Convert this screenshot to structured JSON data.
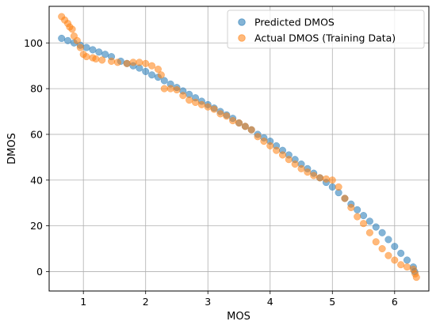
{
  "chart_data": {
    "type": "scatter",
    "xlabel": "MOS",
    "ylabel": "DMOS",
    "xlim": [
      0.45,
      6.55
    ],
    "ylim": [
      -8.5,
      116
    ],
    "xticks": [
      1,
      2,
      3,
      4,
      5,
      6
    ],
    "yticks": [
      0,
      20,
      40,
      60,
      80,
      100
    ],
    "grid": true,
    "legend_position": "top-right",
    "series": [
      {
        "name": "Predicted DMOS",
        "color": "#1f77b4",
        "x": [
          0.65,
          0.75,
          0.85,
          0.95,
          1.05,
          1.15,
          1.25,
          1.35,
          1.45,
          1.6,
          1.7,
          1.8,
          1.9,
          2.0,
          2.1,
          2.2,
          2.3,
          2.4,
          2.5,
          2.6,
          2.7,
          2.8,
          2.9,
          3.0,
          3.1,
          3.2,
          3.3,
          3.4,
          3.5,
          3.6,
          3.7,
          3.8,
          3.9,
          4.0,
          4.1,
          4.2,
          4.3,
          4.4,
          4.5,
          4.6,
          4.7,
          4.8,
          4.9,
          5.0,
          5.1,
          5.2,
          5.3,
          5.4,
          5.5,
          5.6,
          5.7,
          5.8,
          5.9,
          6.0,
          6.1,
          6.2,
          6.3,
          6.32
        ],
        "y": [
          102,
          101,
          100,
          99,
          98,
          97,
          96,
          95,
          94,
          92,
          91,
          90,
          89,
          87.5,
          86,
          85,
          83.5,
          82,
          80.5,
          79,
          77.5,
          76,
          74.5,
          73,
          71.5,
          70,
          68.5,
          67,
          65,
          63.5,
          62,
          60,
          58.5,
          57,
          55,
          53,
          51,
          49,
          47,
          45,
          43,
          41,
          39,
          37,
          34.5,
          32,
          29.5,
          27,
          24.5,
          22,
          19.5,
          17,
          14,
          11,
          8,
          5,
          2,
          0
        ]
      },
      {
        "name": "Actual DMOS (Training Data)",
        "color": "#ff7f0e",
        "x": [
          0.65,
          0.7,
          0.75,
          0.78,
          0.82,
          0.85,
          0.9,
          0.95,
          1.0,
          1.05,
          1.15,
          1.2,
          1.3,
          1.45,
          1.55,
          1.7,
          1.8,
          1.9,
          2.0,
          2.1,
          2.2,
          2.25,
          2.3,
          2.4,
          2.5,
          2.6,
          2.7,
          2.8,
          2.9,
          3.0,
          3.1,
          3.2,
          3.3,
          3.4,
          3.5,
          3.6,
          3.7,
          3.8,
          3.9,
          4.0,
          4.1,
          4.2,
          4.3,
          4.4,
          4.5,
          4.6,
          4.7,
          4.8,
          4.9,
          5.0,
          5.1,
          5.2,
          5.3,
          5.4,
          5.5,
          5.6,
          5.7,
          5.8,
          5.9,
          6.0,
          6.1,
          6.2,
          6.3,
          6.33,
          6.35
        ],
        "y": [
          111.5,
          110,
          108.5,
          107,
          106,
          103,
          101,
          98,
          95,
          94,
          93.5,
          93,
          92.5,
          92,
          91.5,
          91,
          91.5,
          91.5,
          91,
          90,
          88.5,
          86,
          80,
          80,
          79.5,
          77,
          75,
          74,
          73,
          72,
          71,
          69,
          68,
          66,
          65,
          63.5,
          62,
          59,
          57,
          55,
          53,
          51,
          49,
          47,
          45,
          43.5,
          42,
          41,
          40.5,
          40,
          37,
          32,
          28,
          24,
          21,
          17,
          13,
          10,
          7,
          5,
          3,
          2,
          1,
          -1,
          -2.5
        ]
      }
    ]
  }
}
